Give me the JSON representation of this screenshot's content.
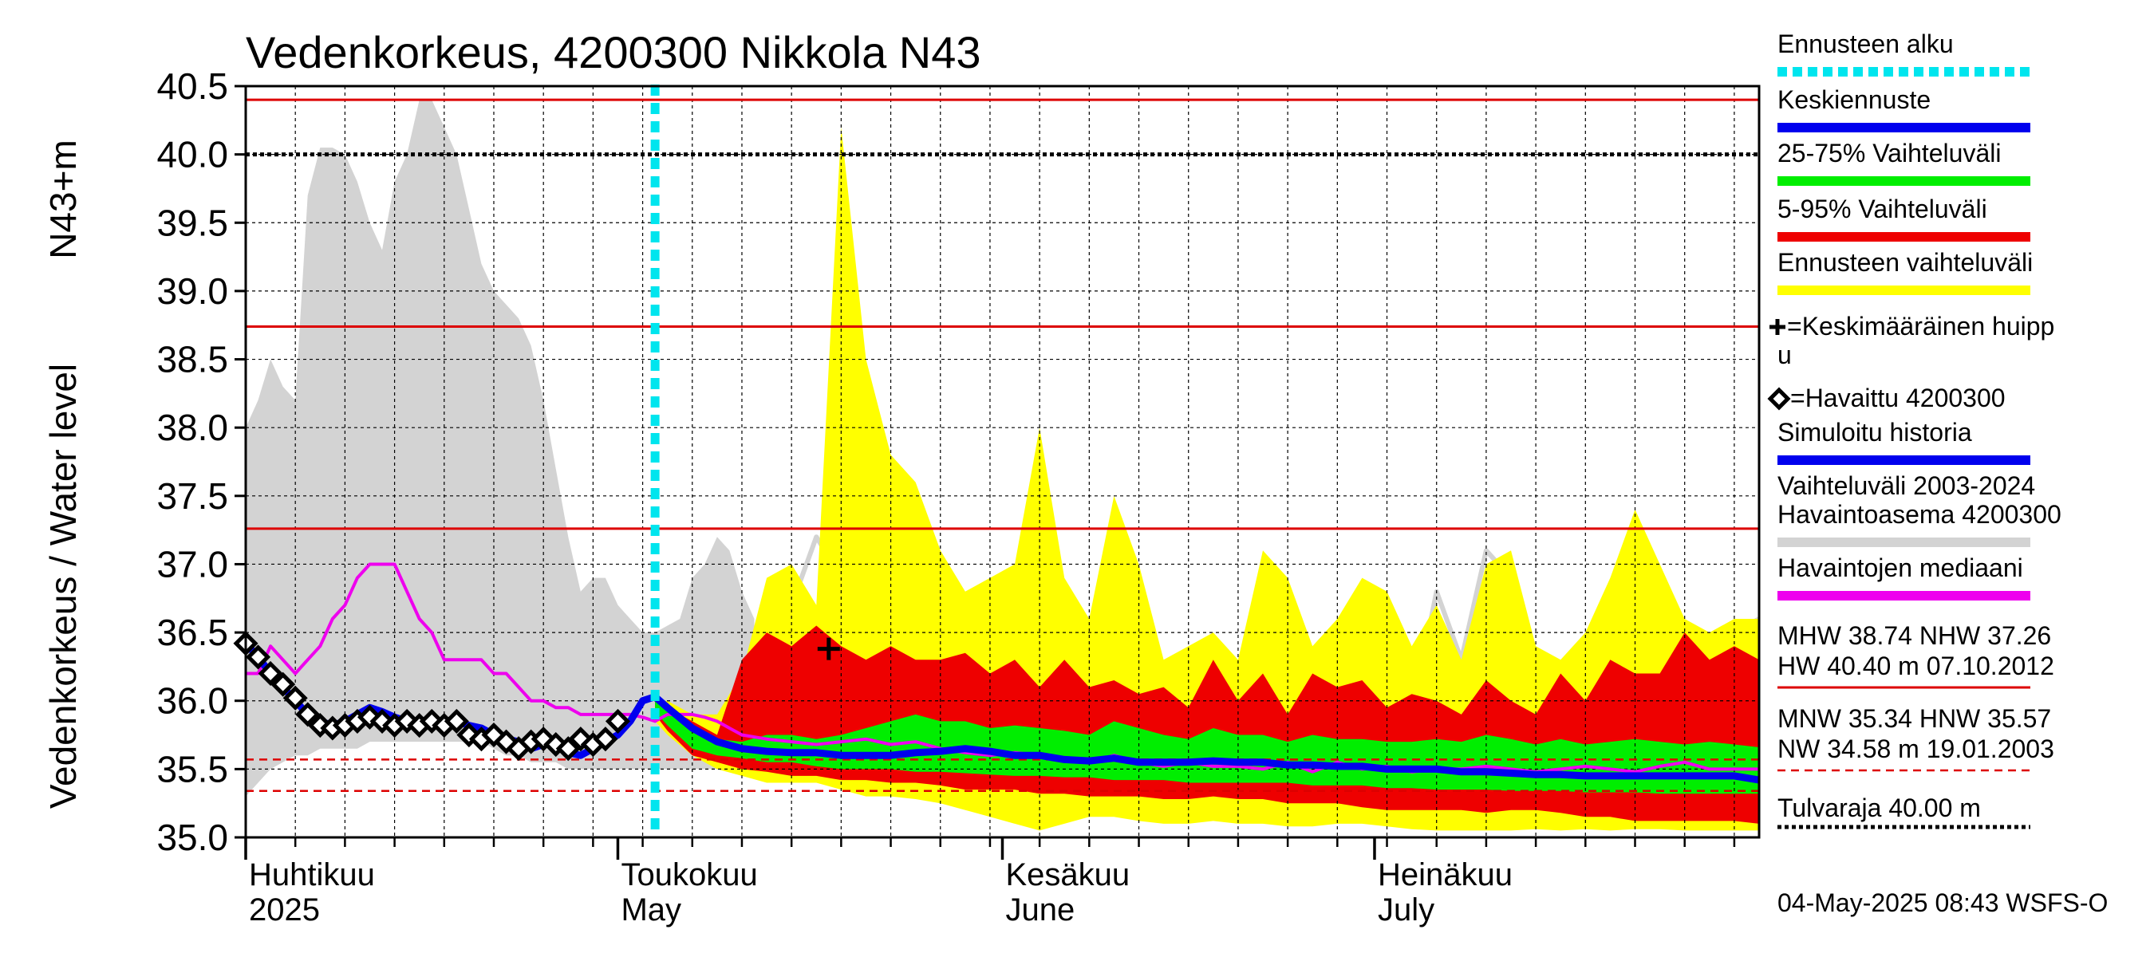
{
  "chart_data": {
    "type": "line",
    "title": "Vedenkorkeus, 4200300 Nikkola N43",
    "ylabel_left": "Vedenkorkeus / Water level",
    "ylabel_right": "N43+m",
    "ylim": [
      35.0,
      40.5
    ],
    "xlim_days": [
      0,
      122
    ],
    "y_ticks": [
      "35.0",
      "35.5",
      "36.0",
      "36.5",
      "37.0",
      "37.5",
      "38.0",
      "38.5",
      "39.0",
      "39.5",
      "40.0",
      "40.5"
    ],
    "month_labels": [
      {
        "fi": "Huhtikuu",
        "en": "2025",
        "day": 0
      },
      {
        "fi": "Toukokuu",
        "en": "May",
        "day": 30
      },
      {
        "fi": "Kesäkuu",
        "en": "June",
        "day": 61
      },
      {
        "fi": "Heinäkuu",
        "en": "July",
        "day": 91
      }
    ],
    "forecast_start_day": 33,
    "reference_lines": {
      "solid_red": [
        40.4,
        38.74,
        37.26
      ],
      "dashed_red": [
        35.57,
        35.34
      ],
      "black_dotted": [
        40.0
      ]
    },
    "history_range": {
      "x": [
        0,
        1,
        2,
        3,
        4,
        5,
        6,
        7,
        8,
        9,
        10,
        11,
        12,
        13,
        14,
        15,
        16,
        17,
        18,
        19,
        20,
        21,
        22,
        23,
        24,
        25,
        26,
        27,
        28,
        29,
        30,
        31,
        32,
        33,
        34,
        35,
        36,
        37,
        38,
        39,
        40,
        41
      ],
      "upper": [
        38.0,
        38.2,
        38.5,
        38.3,
        38.2,
        39.7,
        40.05,
        40.05,
        40.0,
        39.8,
        39.5,
        39.3,
        39.8,
        40.0,
        40.4,
        40.4,
        40.2,
        40.0,
        39.6,
        39.2,
        39.0,
        38.9,
        38.8,
        38.6,
        38.2,
        37.7,
        37.2,
        36.8,
        36.9,
        36.9,
        36.7,
        36.6,
        36.5,
        36.5,
        36.55,
        36.6,
        36.9,
        37.0,
        37.2,
        37.1,
        36.8,
        36.6
      ],
      "lower": [
        35.3,
        35.4,
        35.5,
        35.55,
        35.6,
        35.6,
        35.65,
        35.65,
        35.65,
        35.65,
        35.7,
        35.7,
        35.7,
        35.7,
        35.7,
        35.7,
        35.7,
        35.7,
        35.7,
        35.7,
        35.65,
        35.6,
        35.6,
        35.55,
        35.55,
        35.55,
        35.5,
        35.5,
        35.5,
        35.5,
        35.5,
        35.5,
        35.5,
        35.5,
        35.5,
        35.5,
        35.5,
        35.5,
        35.5,
        35.5,
        35.5,
        35.5
      ]
    },
    "history_gray_line": {
      "x": [
        40,
        42,
        44,
        46,
        48,
        50,
        52,
        54,
        56,
        58,
        60,
        62,
        64,
        66,
        68,
        70,
        72,
        74,
        76,
        78,
        80,
        82,
        84,
        86,
        88,
        90,
        92,
        94,
        96,
        98,
        100,
        102,
        104,
        106,
        108,
        110,
        112,
        114,
        116,
        118,
        120,
        122
      ],
      "y": [
        35.7,
        36.0,
        36.7,
        37.2,
        36.9,
        37.3,
        36.8,
        37.3,
        36.7,
        36.4,
        36.5,
        36.2,
        37.8,
        36.1,
        35.9,
        36.8,
        36.2,
        35.8,
        35.9,
        36.1,
        35.8,
        35.7,
        36.4,
        35.8,
        36.2,
        35.9,
        35.7,
        35.9,
        36.8,
        36.3,
        37.1,
        36.9,
        36.2,
        35.9,
        36.1,
        36.5,
        36.0,
        35.8,
        36.3,
        36.1,
        36.5,
        36.6
      ]
    },
    "forecast_envelope": {
      "x": [
        33,
        34,
        36,
        38,
        40,
        42,
        44,
        46,
        48,
        50,
        52,
        54,
        56,
        58,
        60,
        62,
        64,
        66,
        68,
        70,
        72,
        74,
        76,
        78,
        80,
        82,
        84,
        86,
        88,
        90,
        92,
        94,
        96,
        98,
        100,
        102,
        104,
        106,
        108,
        110,
        112,
        114,
        116,
        118,
        120,
        122
      ],
      "upper": [
        36.0,
        36.0,
        35.9,
        35.9,
        36.2,
        36.9,
        37.0,
        36.7,
        40.2,
        38.5,
        37.8,
        37.6,
        37.1,
        36.8,
        36.9,
        37.0,
        38.0,
        36.9,
        36.6,
        37.5,
        37.0,
        36.3,
        36.4,
        36.5,
        36.3,
        37.1,
        36.9,
        36.4,
        36.6,
        36.9,
        36.8,
        36.4,
        36.7,
        36.3,
        37.0,
        37.1,
        36.4,
        36.3,
        36.5,
        36.9,
        37.4,
        37.0,
        36.6,
        36.5,
        36.6,
        36.6
      ],
      "lower": [
        35.85,
        35.75,
        35.6,
        35.5,
        35.45,
        35.4,
        35.4,
        35.4,
        35.35,
        35.3,
        35.3,
        35.28,
        35.25,
        35.2,
        35.15,
        35.1,
        35.05,
        35.1,
        35.15,
        35.15,
        35.12,
        35.1,
        35.1,
        35.12,
        35.1,
        35.1,
        35.08,
        35.08,
        35.1,
        35.1,
        35.08,
        35.06,
        35.05,
        35.05,
        35.05,
        35.05,
        35.06,
        35.05,
        35.06,
        35.05,
        35.06,
        35.06,
        35.05,
        35.05,
        35.05,
        35.05
      ]
    },
    "band_5_95": {
      "x": [
        33,
        34,
        36,
        38,
        40,
        42,
        44,
        46,
        48,
        50,
        52,
        54,
        56,
        58,
        60,
        62,
        64,
        66,
        68,
        70,
        72,
        74,
        76,
        78,
        80,
        82,
        84,
        86,
        88,
        90,
        92,
        94,
        96,
        98,
        100,
        102,
        104,
        106,
        108,
        110,
        112,
        114,
        116,
        118,
        120,
        122
      ],
      "upper": [
        36.0,
        35.95,
        35.85,
        35.75,
        36.3,
        36.5,
        36.4,
        36.55,
        36.4,
        36.3,
        36.4,
        36.3,
        36.3,
        36.35,
        36.2,
        36.3,
        36.1,
        36.3,
        36.1,
        36.15,
        36.05,
        36.1,
        35.95,
        36.3,
        36.0,
        36.2,
        35.9,
        36.2,
        36.1,
        36.15,
        35.95,
        36.05,
        36.0,
        35.9,
        36.15,
        36.0,
        35.9,
        36.2,
        36.0,
        36.3,
        36.2,
        36.2,
        36.5,
        36.3,
        36.4,
        36.3
      ],
      "lower": [
        35.9,
        35.78,
        35.6,
        35.55,
        35.5,
        35.48,
        35.45,
        35.45,
        35.42,
        35.42,
        35.4,
        35.4,
        35.38,
        35.35,
        35.35,
        35.35,
        35.32,
        35.32,
        35.3,
        35.3,
        35.3,
        35.28,
        35.28,
        35.3,
        35.28,
        35.28,
        35.25,
        35.25,
        35.25,
        35.22,
        35.2,
        35.2,
        35.2,
        35.2,
        35.18,
        35.2,
        35.2,
        35.18,
        35.15,
        35.15,
        35.12,
        35.12,
        35.12,
        35.12,
        35.12,
        35.1
      ]
    },
    "band_25_75": {
      "x": [
        33,
        34,
        36,
        38,
        40,
        42,
        44,
        46,
        48,
        50,
        52,
        54,
        56,
        58,
        60,
        62,
        64,
        66,
        68,
        70,
        72,
        74,
        76,
        78,
        80,
        82,
        84,
        86,
        88,
        90,
        92,
        94,
        96,
        98,
        100,
        102,
        104,
        106,
        108,
        110,
        112,
        114,
        116,
        118,
        120,
        122
      ],
      "upper": [
        36.0,
        35.92,
        35.8,
        35.72,
        35.7,
        35.75,
        35.75,
        35.72,
        35.75,
        35.8,
        35.85,
        35.9,
        35.85,
        35.85,
        35.8,
        35.82,
        35.8,
        35.78,
        35.75,
        35.85,
        35.8,
        35.75,
        35.72,
        35.8,
        35.75,
        35.75,
        35.7,
        35.75,
        35.72,
        35.72,
        35.7,
        35.7,
        35.72,
        35.7,
        35.75,
        35.72,
        35.68,
        35.72,
        35.68,
        35.7,
        35.72,
        35.7,
        35.68,
        35.7,
        35.68,
        35.66
      ],
      "lower": [
        35.92,
        35.82,
        35.65,
        35.6,
        35.58,
        35.55,
        35.55,
        35.52,
        35.5,
        35.5,
        35.5,
        35.48,
        35.48,
        35.47,
        35.46,
        35.45,
        35.45,
        35.44,
        35.44,
        35.42,
        35.42,
        35.42,
        35.4,
        35.4,
        35.4,
        35.4,
        35.4,
        35.38,
        35.38,
        35.38,
        35.36,
        35.36,
        35.35,
        35.35,
        35.35,
        35.34,
        35.34,
        35.34,
        35.33,
        35.33,
        35.33,
        35.32,
        35.32,
        35.32,
        35.32,
        35.32
      ]
    },
    "median_forecast": {
      "x": [
        33,
        34,
        36,
        38,
        40,
        42,
        44,
        46,
        48,
        50,
        52,
        54,
        56,
        58,
        60,
        62,
        64,
        66,
        68,
        70,
        72,
        74,
        76,
        78,
        80,
        82,
        84,
        86,
        88,
        90,
        92,
        94,
        96,
        98,
        100,
        102,
        104,
        106,
        108,
        110,
        112,
        114,
        116,
        118,
        120,
        122
      ],
      "y": [
        36.03,
        35.95,
        35.8,
        35.7,
        35.65,
        35.63,
        35.62,
        35.62,
        35.6,
        35.6,
        35.6,
        35.62,
        35.63,
        35.65,
        35.63,
        35.6,
        35.6,
        35.57,
        35.56,
        35.58,
        35.55,
        35.55,
        35.55,
        35.56,
        35.55,
        35.55,
        35.53,
        35.53,
        35.52,
        35.52,
        35.5,
        35.5,
        35.5,
        35.48,
        35.48,
        35.47,
        35.46,
        35.46,
        35.45,
        35.45,
        35.45,
        35.45,
        35.45,
        35.45,
        35.45,
        35.42
      ]
    },
    "observed_median": {
      "x": [
        0,
        1,
        2,
        3,
        4,
        5,
        6,
        7,
        8,
        9,
        10,
        11,
        12,
        13,
        14,
        15,
        16,
        17,
        18,
        19,
        20,
        21,
        22,
        23,
        24,
        25,
        26,
        27,
        28,
        29,
        30,
        31,
        32,
        33,
        34,
        35,
        36,
        37,
        38,
        39,
        40,
        42,
        44,
        46,
        48,
        50,
        52,
        54,
        56,
        58,
        60,
        62,
        64,
        66,
        68,
        70,
        72,
        74,
        76,
        78,
        80,
        82,
        84,
        86,
        88,
        90,
        92,
        94,
        96,
        98,
        100,
        102,
        104,
        106,
        108,
        110,
        112,
        114,
        116,
        118,
        120,
        122
      ],
      "y": [
        36.2,
        36.2,
        36.4,
        36.3,
        36.2,
        36.3,
        36.4,
        36.6,
        36.7,
        36.9,
        37.0,
        37.0,
        37.0,
        36.8,
        36.6,
        36.5,
        36.3,
        36.3,
        36.3,
        36.3,
        36.2,
        36.2,
        36.1,
        36.0,
        36.0,
        35.95,
        35.95,
        35.9,
        35.9,
        35.9,
        35.9,
        35.9,
        35.88,
        35.85,
        35.9,
        35.9,
        35.9,
        35.88,
        35.85,
        35.8,
        35.75,
        35.72,
        35.7,
        35.68,
        35.7,
        35.72,
        35.68,
        35.7,
        35.65,
        35.62,
        35.6,
        35.62,
        35.6,
        35.58,
        35.55,
        35.6,
        35.55,
        35.52,
        35.55,
        35.52,
        35.52,
        35.5,
        35.55,
        35.48,
        35.55,
        35.5,
        35.52,
        35.48,
        35.5,
        35.5,
        35.52,
        35.5,
        35.48,
        35.5,
        35.52,
        35.5,
        35.48,
        35.52,
        35.55,
        35.5,
        35.5,
        35.5
      ]
    },
    "simulated_history": {
      "x": [
        0,
        1,
        2,
        3,
        4,
        5,
        6,
        7,
        8,
        9,
        10,
        11,
        12,
        13,
        14,
        15,
        16,
        17,
        18,
        19,
        20,
        21,
        22,
        23,
        24,
        25,
        26,
        27,
        28,
        29,
        30,
        31,
        32,
        33
      ],
      "y": [
        36.42,
        36.32,
        36.2,
        36.1,
        36.0,
        35.9,
        35.85,
        35.82,
        35.85,
        35.9,
        35.95,
        35.92,
        35.88,
        35.85,
        35.85,
        35.85,
        35.85,
        35.85,
        35.82,
        35.8,
        35.75,
        35.72,
        35.7,
        35.65,
        35.68,
        35.7,
        35.62,
        35.6,
        35.65,
        35.7,
        35.75,
        35.85,
        36.0,
        36.03
      ]
    },
    "observed": {
      "x": [
        0,
        1,
        2,
        3,
        4,
        5,
        6,
        7,
        8,
        9,
        10,
        11,
        12,
        13,
        14,
        15,
        16,
        17,
        18,
        19,
        20,
        21,
        22,
        23,
        24,
        25,
        26,
        27,
        28,
        29,
        30
      ],
      "y": [
        36.42,
        36.32,
        36.2,
        36.12,
        36.02,
        35.9,
        35.82,
        35.8,
        35.82,
        35.85,
        35.88,
        35.85,
        35.82,
        35.85,
        35.82,
        35.85,
        35.82,
        35.85,
        35.75,
        35.72,
        35.75,
        35.7,
        35.65,
        35.7,
        35.72,
        35.68,
        35.65,
        35.72,
        35.68,
        35.72,
        35.85
      ]
    },
    "mean_peak": {
      "day": 47,
      "value": 36.38
    },
    "legend": [
      {
        "label": "Ennusteen alku",
        "color": "#00e5ee",
        "style": "dotted"
      },
      {
        "label": "Keskiennuste",
        "color": "#0000ee",
        "style": "solid"
      },
      {
        "label": "25-75% Vaihteluväli",
        "color": "#00ee00",
        "style": "solid"
      },
      {
        "label": "5-95% Vaihteluväli",
        "color": "#ee0000",
        "style": "solid"
      },
      {
        "label": "Ennusteen vaihteluväli",
        "color": "#ffff00",
        "style": "solid"
      },
      {
        "label": "+=Keskimääräinen huipp",
        "label2": "u",
        "marker": "plus"
      },
      {
        "label": "=Havaittu 4200300",
        "marker": "diamond"
      },
      {
        "label": "Simuloitu historia",
        "color": "#0000ee",
        "style": "solid"
      },
      {
        "label": "Vaihteluväli 2003-2024",
        "label2": " Havaintoasema 4200300",
        "color": "#d3d3d3",
        "style": "solid"
      },
      {
        "label": "Havaintojen mediaani",
        "color": "#ee00ee",
        "style": "solid"
      }
    ],
    "stats": {
      "line1": "MHW  38.74 NHW  37.26",
      "line2": "HW  40.40 m 07.10.2012",
      "line3": "MNW  35.34 HNW  35.57",
      "line4": "NW  34.58 m 19.01.2003",
      "line5": "Tulvaraja 40.00 m"
    },
    "timestamp": "04-May-2025 08:43 WSFS-O",
    "colors": {
      "history_range": "#d3d3d3",
      "envelope": "#ffff00",
      "band_5_95": "#ee0000",
      "band_25_75": "#00ee00",
      "median": "#0000ee",
      "observed_median": "#ee00ee",
      "reference": "#dd0000",
      "forecast_start": "#00e5ee"
    }
  }
}
